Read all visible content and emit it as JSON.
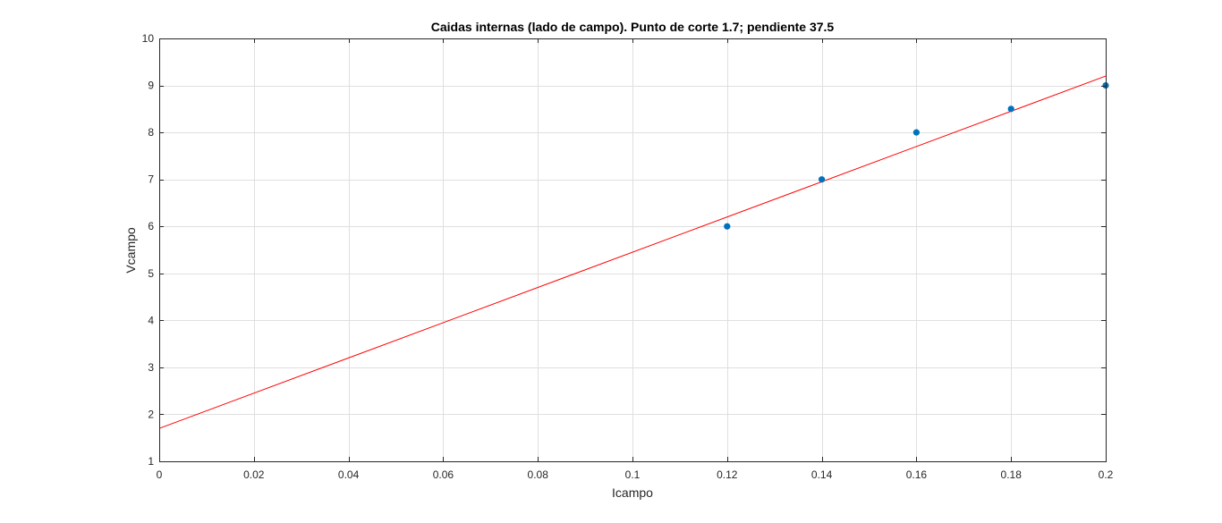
{
  "chart_data": {
    "type": "scatter",
    "title": "Caidas internas (lado de campo). Punto de corte 1.7; pendiente 37.5",
    "xlabel": "Icampo",
    "ylabel": "Vcampo",
    "xlim": [
      0,
      0.2
    ],
    "ylim": [
      1,
      10
    ],
    "xticks": [
      0,
      0.02,
      0.04,
      0.06,
      0.08,
      0.1,
      0.12,
      0.14,
      0.16,
      0.18,
      0.2
    ],
    "yticks": [
      1,
      2,
      3,
      4,
      5,
      6,
      7,
      8,
      9,
      10
    ],
    "xtick_labels": [
      "0",
      "0.02",
      "0.04",
      "0.06",
      "0.08",
      "0.1",
      "0.12",
      "0.14",
      "0.16",
      "0.18",
      "0.2"
    ],
    "ytick_labels": [
      "1",
      "2",
      "3",
      "4",
      "5",
      "6",
      "7",
      "8",
      "9",
      "10"
    ],
    "grid": true,
    "series": [
      {
        "kind": "scatter",
        "color": "#0072bd",
        "x": [
          0.12,
          0.14,
          0.16,
          0.18,
          0.2
        ],
        "y": [
          6,
          7,
          8,
          8.5,
          9
        ]
      },
      {
        "kind": "line",
        "color": "#ff0000",
        "intercept": 1.7,
        "slope": 37.5,
        "x": [
          0,
          0.2
        ],
        "y": [
          1.7,
          9.2
        ]
      }
    ]
  }
}
